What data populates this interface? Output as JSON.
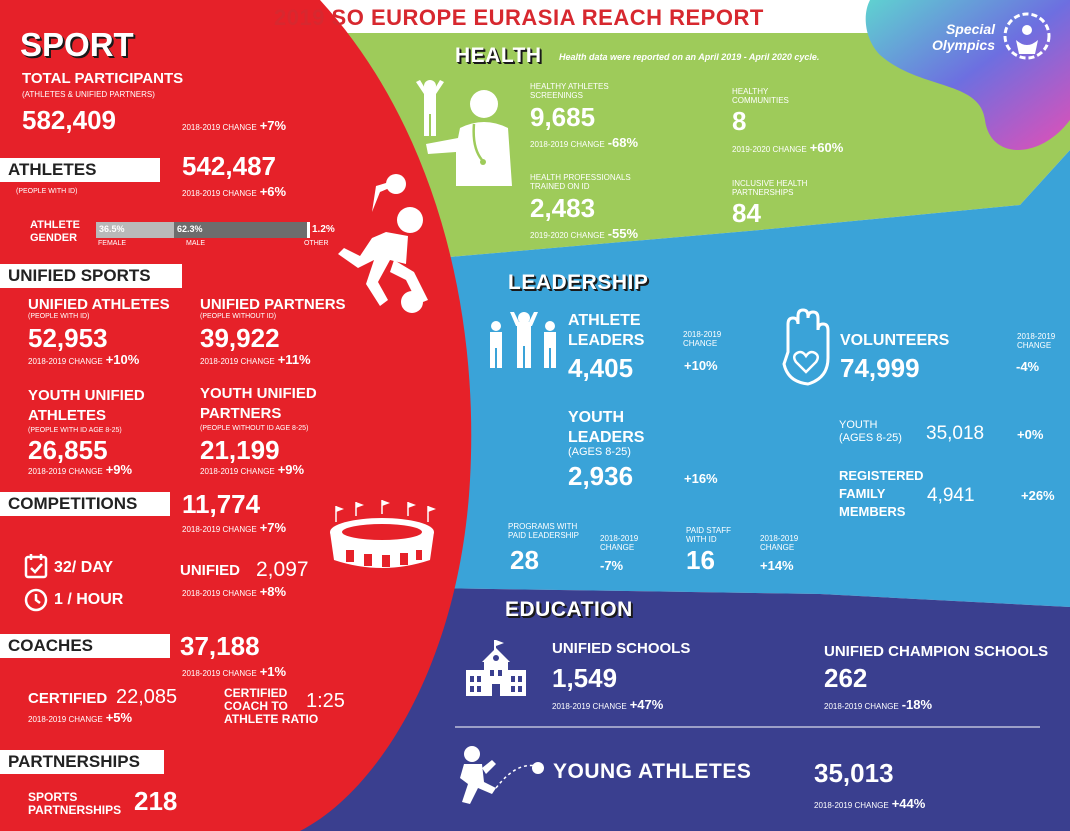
{
  "title": "2019 SO EUROPE EURASIA REACH REPORT",
  "logo_text": "Special Olympics",
  "colors": {
    "red": "#e62129",
    "green": "#9ecb5a",
    "blue": "#3aa3d8",
    "navy": "#3a3f8f",
    "title_red": "#d7282f"
  },
  "sport": {
    "heading": "SPORT",
    "total_label": "TOTAL PARTICIPANTS",
    "total_sub": "(ATHLETES & UNIFIED PARTNERS)",
    "total_value": "582,409",
    "total_change_label": "2018-2019 CHANGE",
    "total_change": "+7%",
    "athletes_tag": "ATHLETES",
    "athletes_sub": "(PEOPLE WITH ID)",
    "athletes_value": "542,487",
    "athletes_change_label": "2018-2019 CHANGE",
    "athletes_change": "+6%",
    "gender_label_1": "ATHLETE",
    "gender_label_2": "GENDER",
    "gender": [
      {
        "pct": "36.5%",
        "label": "FEMALE",
        "value": 36.5,
        "color": "#b9b9b9"
      },
      {
        "pct": "62.3%",
        "label": "MALE",
        "value": 62.3,
        "color": "#6d6d6d"
      },
      {
        "pct": "1.2%",
        "label": "OTHER",
        "value": 1.2,
        "color": "#ffffff"
      }
    ],
    "unified_tag": "UNIFIED SPORTS",
    "ua_label": "UNIFIED ATHLETES",
    "ua_sub": "(PEOPLE WITH ID)",
    "ua_value": "52,953",
    "ua_change_label": "2018-2019 CHANGE",
    "ua_change": "+10%",
    "up_label": "UNIFIED PARTNERS",
    "up_sub": "(PEOPLE WITHOUT ID)",
    "up_value": "39,922",
    "up_change_label": "2018-2019 CHANGE",
    "up_change": "+11%",
    "yua_label_1": "YOUTH UNIFIED",
    "yua_label_2": "ATHLETES",
    "yua_sub": "(PEOPLE WITH ID AGE 8-25)",
    "yua_value": "26,855",
    "yua_change_label": "2018-2019 CHANGE",
    "yua_change": "+9%",
    "yup_label_1": "YOUTH UNIFIED",
    "yup_label_2": "PARTNERS",
    "yup_sub": "(PEOPLE WITHOUT ID AGE 8-25)",
    "yup_value": "21,199",
    "yup_change_label": "2018-2019 CHANGE",
    "yup_change": "+9%",
    "comp_tag": "COMPETITIONS",
    "comp_value": "11,774",
    "comp_change_label": "2018-2019 CHANGE",
    "comp_change": "+7%",
    "per_day": "32/ DAY",
    "per_hour": "1 / HOUR",
    "unified_label": "UNIFIED",
    "unified_value": "2,097",
    "unified_change_label": "2018-2019 CHANGE",
    "unified_change": "+8%",
    "coaches_tag": "COACHES",
    "coaches_value": "37,188",
    "coaches_change_label": "2018-2019 CHANGE",
    "coaches_change": "+1%",
    "certified_label": "CERTIFIED",
    "certified_value": "22,085",
    "certified_change_label": "2018-2019 CHANGE",
    "certified_change": "+5%",
    "ratio_label_1": "CERTIFIED",
    "ratio_label_2": "COACH TO",
    "ratio_label_3": "ATHLETE RATIO",
    "ratio_value": "1:25",
    "partnerships_tag": "PARTNERSHIPS",
    "sp_label_1": "SPORTS",
    "sp_label_2": "PARTNERSHIPS",
    "sp_value": "218"
  },
  "health": {
    "heading": "HEALTH",
    "note": "Health data were reported on an April 2019 - April 2020 cycle.",
    "has_label_1": "HEALTHY ATHLETES",
    "has_label_2": "SCREENINGS",
    "has_value": "9,685",
    "has_change_label": "2018-2019 CHANGE",
    "has_change": "-68%",
    "hc_label_1": "HEALTHY",
    "hc_label_2": "COMMUNITIES",
    "hc_value": "8",
    "hc_change_label": "2019-2020 CHANGE",
    "hc_change": "+60%",
    "hp_label_1": "HEALTH PROFESSIONALS",
    "hp_label_2": "TRAINED ON ID",
    "hp_value": "2,483",
    "hp_change_label": "2019-2020 CHANGE",
    "hp_change": "-55%",
    "ihp_label_1": "INCLUSIVE HEALTH",
    "ihp_label_2": "PARTNERSHIPS",
    "ihp_value": "84"
  },
  "leadership": {
    "heading": "LEADERSHIP",
    "al_label_1": "ATHLETE",
    "al_label_2": "LEADERS",
    "al_value": "4,405",
    "al_change_label_1": "2018-2019",
    "al_change_label_2": "CHANGE",
    "al_change": "+10%",
    "yl_label_1": "YOUTH",
    "yl_label_2": "LEADERS",
    "yl_sub": "(AGES 8-25)",
    "yl_value": "2,936",
    "yl_change": "+16%",
    "vol_label": "VOLUNTEERS",
    "vol_value": "74,999",
    "vol_change_label_1": "2018-2019",
    "vol_change_label_2": "CHANGE",
    "vol_change": "-4%",
    "youth_label_1": "YOUTH",
    "youth_label_2": "(AGES 8-25)",
    "youth_value": "35,018",
    "youth_change": "+0%",
    "rfm_label_1": "REGISTERED",
    "rfm_label_2": "FAMILY",
    "rfm_label_3": "MEMBERS",
    "rfm_value": "4,941",
    "rfm_change": "+26%",
    "ppl_label_1": "PROGRAMS WITH",
    "ppl_label_2": "PAID LEADERSHIP",
    "ppl_value": "28",
    "ppl_change_label_1": "2018-2019",
    "ppl_change_label_2": "CHANGE",
    "ppl_change": "-7%",
    "ps_label_1": "PAID STAFF",
    "ps_label_2": "WITH ID",
    "ps_value": "16",
    "ps_change_label_1": "2018-2019",
    "ps_change_label_2": "CHANGE",
    "ps_change": "+14%"
  },
  "education": {
    "heading": "EDUCATION",
    "us_label": "UNIFIED SCHOOLS",
    "us_value": "1,549",
    "us_change_label": "2018-2019 CHANGE",
    "us_change": "+47%",
    "ucs_label": "UNIFIED CHAMPION SCHOOLS",
    "ucs_value": "262",
    "ucs_change_label": "2018-2019 CHANGE",
    "ucs_change": "-18%",
    "ya_label": "YOUNG ATHLETES",
    "ya_value": "35,013",
    "ya_change_label": "2018-2019 CHANGE",
    "ya_change": "+44%"
  }
}
